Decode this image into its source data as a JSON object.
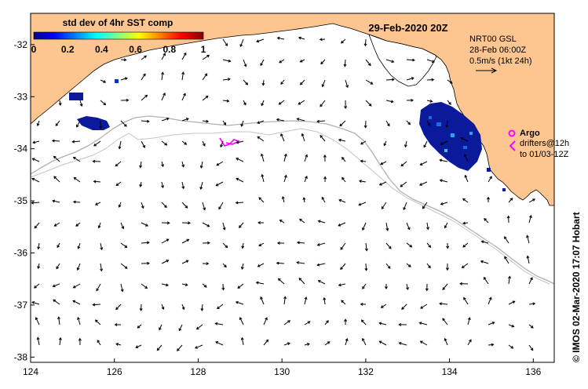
{
  "title": "29-Feb-2020 20Z",
  "colorbar": {
    "title": "std dev of 4hr SST comp",
    "ticks": [
      "0",
      "0.2",
      "0.4",
      "0.6",
      "0.8",
      "1"
    ],
    "range": [
      0,
      1
    ],
    "colormap": "jet"
  },
  "current_info": {
    "line1": "NRT00 GSL",
    "line2": "28-Feb 06:00Z",
    "line3": "0.5m/s (1kt 24h)"
  },
  "legend": {
    "argo_label": "Argo",
    "drifters_line1": "drifters@12h",
    "drifters_line2": "to 01/03-12Z",
    "argo_marker_color": "#ff00ff"
  },
  "credit": "© IMOS 02-Mar-2020 17:07 Hobart",
  "axes": {
    "x_ticks": [
      "124",
      "126",
      "128",
      "130",
      "132",
      "134",
      "136"
    ],
    "y_ticks": [
      "-32",
      "-33",
      "-34",
      "-35",
      "-36",
      "-37",
      "-38"
    ],
    "lon_range": [
      124,
      136.5
    ],
    "lat_range": [
      -38.1,
      -31.4
    ]
  },
  "colors": {
    "land": "#fdc690",
    "ocean": "#ffffff",
    "isobath": "#b0b0b0",
    "drifter": "#ff00ff",
    "arrow": "#000000"
  }
}
